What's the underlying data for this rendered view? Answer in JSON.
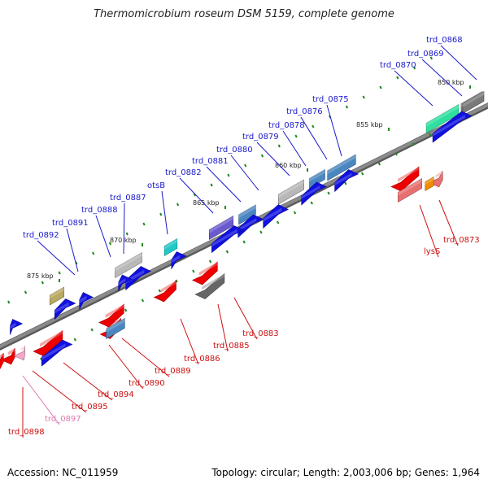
{
  "title": "Thermomicrobium roseum DSM 5159, complete genome",
  "footer": {
    "accession": "Accession: NC_011959",
    "stats": "Topology: circular; Length: 2,003,006 bp; Genes: 1,964"
  },
  "colors": {
    "backbone": "#8a8a8a",
    "label_forward": "#1a1acc",
    "label_reverse": "#cc1111",
    "label_pink": "#e07ab0",
    "tick": "#1f8a1f",
    "ruler_text": "#222222"
  },
  "ruler": [
    "850 kbp",
    "855 kbp",
    "860 kbp",
    "865 kbp",
    "870 kbp",
    "875 kbp"
  ],
  "genes_forward": [
    {
      "label": "trd_0868",
      "color": "#7a7a7a"
    },
    {
      "label": "trd_0869",
      "color": "#7a7a7a"
    },
    {
      "label": "trd_0870",
      "color": "#2ee0a0"
    },
    {
      "label": "trd_0875",
      "color": "#4a86c0"
    },
    {
      "label": "trd_0876",
      "color": "#4a86c0"
    },
    {
      "label": "trd_0878",
      "color": "#b8b8b8"
    },
    {
      "label": "trd_0879",
      "color": "#b8b8b8"
    },
    {
      "label": "trd_0880",
      "color": "#1010e0"
    },
    {
      "label": "trd_0881",
      "color": "#4a86c0"
    },
    {
      "label": "trd_0882",
      "color": "#6a5acd"
    },
    {
      "label": "otsB",
      "color": "#20c8c8"
    },
    {
      "label": "trd_0887",
      "color": "#b8b8b8"
    },
    {
      "label": "trd_0888",
      "color": "#1010e0"
    },
    {
      "label": "trd_0891",
      "color": "#1010e0"
    },
    {
      "label": "trd_0892",
      "color": "#b8a860"
    }
  ],
  "genes_reverse": [
    {
      "label": "trd_0873",
      "color": "#e87070"
    },
    {
      "label": "lysS",
      "color": "#ee0000"
    },
    {
      "label": "trd_0883",
      "color": "#666666"
    },
    {
      "label": "trd_0885",
      "color": "#ee0000"
    },
    {
      "label": "trd_0886",
      "color": "#ee0000"
    },
    {
      "label": "trd_0889",
      "color": "#ee0000"
    },
    {
      "label": "trd_0890",
      "color": "#ee0000"
    },
    {
      "label": "trd_0894",
      "color": "#ee0000"
    },
    {
      "label": "trd_0895",
      "color": "#ee0000"
    },
    {
      "label": "trd_0897",
      "color": "#f4a6c8"
    },
    {
      "label": "trd_0898",
      "color": "#ee0000"
    }
  ]
}
